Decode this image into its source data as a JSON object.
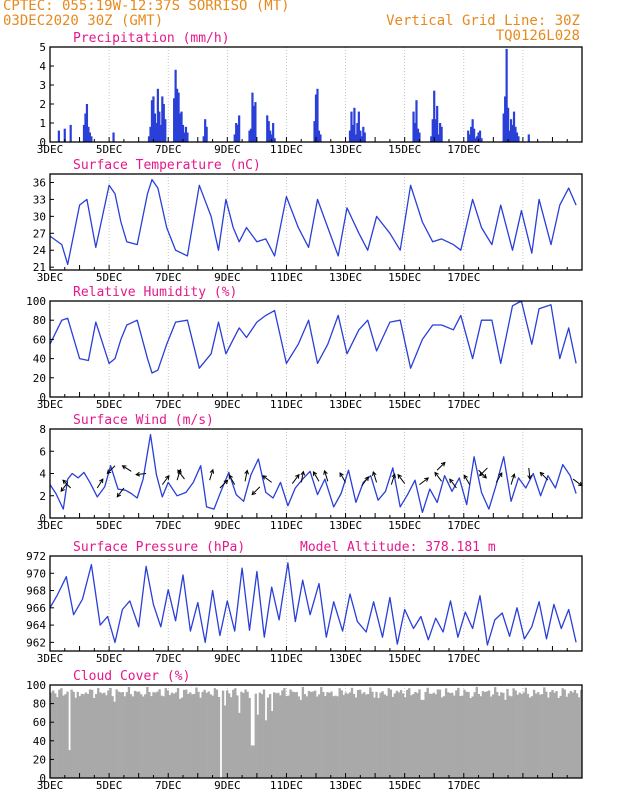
{
  "header": {
    "line1_left": "CPTEC:   055:19W-12:37S  SORRISO (MT)",
    "line2_left": "03DEC2020 30Z (GMT)",
    "line2_right": "Vertical Grid Line: 30Z",
    "line3_right": "TQ0126L028"
  },
  "colors": {
    "header": "#e68a1e",
    "title": "#e6188c",
    "series": "#2a3fd8",
    "bars": "#2a3fd8",
    "cloud": "#a9a9a9"
  },
  "x_ticks": [
    "3DEC",
    "5DEC",
    "7DEC",
    "9DEC",
    "11DEC",
    "13DEC",
    "15DEC",
    "17DEC"
  ],
  "chart_data": [
    {
      "type": "bar",
      "title": "Precipitation (mm/h)",
      "ylim": [
        0,
        5
      ],
      "yticks": [
        "0",
        "1",
        "2",
        "3",
        "4",
        "5"
      ],
      "x_days": [
        0.3,
        0.5,
        0.7,
        1.15,
        1.2,
        1.25,
        1.3,
        1.35,
        1.4,
        2.15,
        3.35,
        3.4,
        3.45,
        3.5,
        3.55,
        3.6,
        3.65,
        3.7,
        3.75,
        3.8,
        3.85,
        3.9,
        4.2,
        4.25,
        4.3,
        4.35,
        4.4,
        4.45,
        4.5,
        4.55,
        4.6,
        4.65,
        5.2,
        5.25,
        5.3,
        6.25,
        6.3,
        6.35,
        6.4,
        6.75,
        6.8,
        6.85,
        6.9,
        6.95,
        7.35,
        7.4,
        7.45,
        7.5,
        7.55,
        7.6,
        8.95,
        9.0,
        9.05,
        9.1,
        9.15,
        10.15,
        10.2,
        10.25,
        10.3,
        10.35,
        10.4,
        10.45,
        10.5,
        10.55,
        10.6,
        10.65,
        12.3,
        12.35,
        12.4,
        12.45,
        12.5,
        12.9,
        12.95,
        13.0,
        13.05,
        13.1,
        13.15,
        13.2,
        13.25,
        14.15,
        14.2,
        14.25,
        14.3,
        14.35,
        14.4,
        14.45,
        14.5,
        14.55,
        14.6,
        15.35,
        15.4,
        15.45,
        15.5,
        15.55,
        15.6,
        15.65,
        15.7,
        15.75,
        15.8,
        15.85,
        16.2
      ],
      "values": [
        0.6,
        0.7,
        0.9,
        0.9,
        1.5,
        2.0,
        0.8,
        0.5,
        0.3,
        0.5,
        0.3,
        0.8,
        2.2,
        2.4,
        1.5,
        1.0,
        2.8,
        1.6,
        0.9,
        2.4,
        2.0,
        1.2,
        2.3,
        3.8,
        2.8,
        2.6,
        1.5,
        1.6,
        0.9,
        0.5,
        0.8,
        0.5,
        0.3,
        1.2,
        0.8,
        0.4,
        1.0,
        0.9,
        1.4,
        0.6,
        0.7,
        2.6,
        1.9,
        2.1,
        1.4,
        1.1,
        0.6,
        0.4,
        1.0,
        0.2,
        1.1,
        2.5,
        2.8,
        0.6,
        0.4,
        0.6,
        1.6,
        0.9,
        1.8,
        0.4,
        1.0,
        1.6,
        0.6,
        0.3,
        0.8,
        0.5,
        1.6,
        1.0,
        2.2,
        0.7,
        0.5,
        0.3,
        1.2,
        2.7,
        1.2,
        1.9,
        0.4,
        1.0,
        0.8,
        0.6,
        0.4,
        0.8,
        1.2,
        0.7,
        0.2,
        0.3,
        0.5,
        0.6,
        0.2,
        1.5,
        2.4,
        4.9,
        1.8,
        0.6,
        1.2,
        0.9,
        1.6,
        0.8,
        0.5,
        0.3,
        0.4
      ]
    },
    {
      "type": "line",
      "title": "Surface Temperature (nC)",
      "ylim": [
        20.5,
        37.5
      ],
      "yticks": [
        "21",
        "24",
        "27",
        "30",
        "33",
        "36"
      ],
      "x_days": [
        0,
        0.4,
        0.6,
        1.0,
        1.25,
        1.55,
        2.0,
        2.2,
        2.4,
        2.6,
        2.95,
        3.3,
        3.45,
        3.65,
        3.95,
        4.25,
        4.65,
        5.05,
        5.45,
        5.7,
        5.95,
        6.2,
        6.4,
        6.65,
        7.0,
        7.3,
        7.6,
        8.0,
        8.4,
        8.75,
        9.05,
        9.4,
        9.75,
        10.05,
        10.45,
        10.75,
        11.05,
        11.5,
        11.85,
        12.2,
        12.6,
        12.95,
        13.25,
        13.65,
        13.9,
        14.3,
        14.6,
        14.95,
        15.25,
        15.65,
        15.95,
        16.3,
        16.55,
        16.95,
        17.25,
        17.55,
        17.8
      ],
      "values": [
        26.5,
        25,
        21.5,
        32,
        33,
        24.5,
        35.5,
        34,
        29,
        25.5,
        25,
        34,
        36.5,
        35,
        28,
        24,
        23,
        35.5,
        30,
        24,
        33,
        28,
        25.5,
        28,
        25.5,
        26,
        23,
        33.5,
        28,
        24.5,
        33,
        28,
        23,
        31.5,
        27,
        24,
        30,
        27,
        24,
        35.5,
        29,
        25.5,
        26,
        25,
        24,
        33,
        28,
        25,
        32,
        24,
        31,
        23.5,
        33,
        25,
        32,
        35,
        32
      ]
    },
    {
      "type": "line",
      "title": "Relative Humidity (%)",
      "ylim": [
        0,
        100
      ],
      "yticks": [
        "0",
        "20",
        "40",
        "60",
        "80",
        "100"
      ],
      "x_days": [
        0,
        0.4,
        0.6,
        1.0,
        1.3,
        1.55,
        2.0,
        2.2,
        2.4,
        2.6,
        2.95,
        3.3,
        3.45,
        3.65,
        3.95,
        4.25,
        4.65,
        5.05,
        5.45,
        5.7,
        5.95,
        6.2,
        6.4,
        6.65,
        7.0,
        7.3,
        7.6,
        8.0,
        8.4,
        8.75,
        9.05,
        9.4,
        9.75,
        10.05,
        10.45,
        10.75,
        11.05,
        11.5,
        11.85,
        12.2,
        12.6,
        12.95,
        13.25,
        13.65,
        13.9,
        14.3,
        14.6,
        14.95,
        15.25,
        15.65,
        15.95,
        16.3,
        16.55,
        16.95,
        17.25,
        17.55,
        17.8
      ],
      "values": [
        55,
        80,
        82,
        40,
        38,
        78,
        35,
        40,
        60,
        75,
        80,
        40,
        25,
        28,
        55,
        78,
        80,
        30,
        45,
        78,
        45,
        60,
        72,
        62,
        78,
        85,
        90,
        35,
        55,
        80,
        35,
        55,
        85,
        45,
        70,
        80,
        48,
        78,
        80,
        30,
        60,
        75,
        75,
        70,
        85,
        40,
        80,
        80,
        35,
        95,
        100,
        55,
        92,
        96,
        40,
        72,
        35
      ]
    },
    {
      "type": "line",
      "title": "Surface Wind (m/s)",
      "ylim": [
        0,
        8
      ],
      "yticks": [
        "0",
        "2",
        "4",
        "6",
        "8"
      ],
      "x_days": [
        0,
        0.2,
        0.45,
        0.6,
        0.75,
        0.95,
        1.15,
        1.35,
        1.6,
        1.85,
        2.05,
        2.3,
        2.55,
        2.75,
        2.95,
        3.15,
        3.4,
        3.6,
        3.8,
        4.0,
        4.3,
        4.6,
        4.85,
        5.1,
        5.3,
        5.55,
        5.8,
        6.05,
        6.3,
        6.55,
        6.8,
        7.05,
        7.3,
        7.55,
        7.8,
        8.05,
        8.3,
        8.55,
        8.8,
        9.05,
        9.3,
        9.6,
        9.85,
        10.1,
        10.35,
        10.6,
        10.85,
        11.1,
        11.35,
        11.6,
        11.85,
        12.1,
        12.35,
        12.6,
        12.85,
        13.1,
        13.35,
        13.6,
        13.85,
        14.1,
        14.35,
        14.6,
        14.85,
        15.1,
        15.35,
        15.6,
        15.85,
        16.1,
        16.35,
        16.6,
        16.85,
        17.1,
        17.35,
        17.6,
        17.8
      ],
      "values": [
        3,
        2.2,
        0.8,
        3.5,
        4,
        3.6,
        4.1,
        3.2,
        1.9,
        2.8,
        4.7,
        2.6,
        2.5,
        2.2,
        1.8,
        3.5,
        7.5,
        3.9,
        1.9,
        3.2,
        2,
        2.3,
        3.2,
        4.7,
        1,
        0.8,
        2.5,
        4.1,
        2.1,
        1.5,
        3.9,
        5.3,
        2.3,
        1.8,
        3.2,
        1.1,
        2.7,
        3.5,
        4.2,
        2.1,
        3.5,
        1,
        2.2,
        4.3,
        1.4,
        3.2,
        3.8,
        1.6,
        2.4,
        4.5,
        1,
        2.1,
        3.4,
        0.5,
        2.6,
        1.4,
        3.8,
        2.4,
        3.6,
        1.2,
        5.5,
        2.3,
        0.8,
        3,
        5.5,
        1.5,
        3.6,
        2.7,
        4,
        2,
        3.8,
        2.7,
        4.8,
        3.8,
        2.2
      ],
      "arrows": [
        {
          "x": 0.6,
          "y": 3.2,
          "dx": -0.6,
          "dy": -0.8
        },
        {
          "x": 0.7,
          "y": 2.7,
          "dx": -0.7,
          "dy": 0.7
        },
        {
          "x": 1.6,
          "y": 2.7,
          "dx": 0.5,
          "dy": 0.8
        },
        {
          "x": 2.2,
          "y": 4.7,
          "dx": -0.7,
          "dy": -0.7
        },
        {
          "x": 2.75,
          "y": 4.2,
          "dx": -0.8,
          "dy": 0.5
        },
        {
          "x": 2.5,
          "y": 2.7,
          "dx": -0.6,
          "dy": -0.8
        },
        {
          "x": 3.25,
          "y": 4.0,
          "dx": -0.9,
          "dy": -0.1
        },
        {
          "x": 3.8,
          "y": 3.0,
          "dx": 0.6,
          "dy": 0.8
        },
        {
          "x": 4.3,
          "y": 3.4,
          "dx": 0.3,
          "dy": 0.95
        },
        {
          "x": 4.55,
          "y": 3.5,
          "dx": -0.6,
          "dy": 0.8
        },
        {
          "x": 5.4,
          "y": 3.4,
          "dx": 0.3,
          "dy": 0.95
        },
        {
          "x": 5.75,
          "y": 2.7,
          "dx": 0.7,
          "dy": 0.7
        },
        {
          "x": 6.25,
          "y": 3.0,
          "dx": -0.5,
          "dy": 0.85
        },
        {
          "x": 6.6,
          "y": 3.3,
          "dx": 0.2,
          "dy": 0.98
        },
        {
          "x": 7.1,
          "y": 2.8,
          "dx": -0.7,
          "dy": -0.7
        },
        {
          "x": 7.5,
          "y": 3.2,
          "dx": -0.8,
          "dy": 0.6
        },
        {
          "x": 8.2,
          "y": 3.1,
          "dx": 0.6,
          "dy": 0.8
        },
        {
          "x": 8.5,
          "y": 3.2,
          "dx": 0.2,
          "dy": 0.98
        },
        {
          "x": 9.1,
          "y": 3.3,
          "dx": -0.5,
          "dy": 0.85
        },
        {
          "x": 9.4,
          "y": 3.3,
          "dx": -0.3,
          "dy": 0.95
        },
        {
          "x": 10.0,
          "y": 3.2,
          "dx": -0.5,
          "dy": 0.85
        },
        {
          "x": 10.55,
          "y": 2.9,
          "dx": 0.6,
          "dy": 0.8
        },
        {
          "x": 11.05,
          "y": 3.2,
          "dx": -0.3,
          "dy": 0.95
        },
        {
          "x": 11.55,
          "y": 3.0,
          "dx": 0.3,
          "dy": 0.95
        },
        {
          "x": 12.0,
          "y": 3.1,
          "dx": -0.6,
          "dy": 0.8
        },
        {
          "x": 12.5,
          "y": 3.0,
          "dx": 0.8,
          "dy": 0.6
        },
        {
          "x": 13.1,
          "y": 4.3,
          "dx": 0.7,
          "dy": 0.7
        },
        {
          "x": 13.25,
          "y": 3.3,
          "dx": -0.6,
          "dy": 0.8
        },
        {
          "x": 13.75,
          "y": 2.7,
          "dx": -0.6,
          "dy": 0.8
        },
        {
          "x": 14.2,
          "y": 3.0,
          "dx": -0.5,
          "dy": 0.85
        },
        {
          "x": 14.5,
          "y": 4.3,
          "dx": 0.7,
          "dy": -0.7
        },
        {
          "x": 14.8,
          "y": 4.5,
          "dx": -0.7,
          "dy": -0.7
        },
        {
          "x": 15.1,
          "y": 3.2,
          "dx": 0.5,
          "dy": 0.85
        },
        {
          "x": 15.6,
          "y": 3.0,
          "dx": 0.3,
          "dy": 0.95
        },
        {
          "x": 16.2,
          "y": 4.5,
          "dx": 0.1,
          "dy": -0.99
        },
        {
          "x": 16.85,
          "y": 3.4,
          "dx": -0.7,
          "dy": 0.7
        },
        {
          "x": 17.7,
          "y": 3.5,
          "dx": 0.8,
          "dy": -0.6
        }
      ]
    },
    {
      "type": "line",
      "title": "Surface Pressure (hPa)",
      "annotation": "Model Altitude: 378.181 m",
      "ylim": [
        961,
        972
      ],
      "yticks": [
        "962",
        "964",
        "966",
        "968",
        "970",
        "972"
      ],
      "x_days": [
        0,
        0.25,
        0.55,
        0.8,
        1.1,
        1.4,
        1.7,
        1.95,
        2.2,
        2.45,
        2.7,
        3.0,
        3.25,
        3.5,
        3.75,
        4.0,
        4.25,
        4.5,
        4.75,
        5.0,
        5.25,
        5.5,
        5.75,
        6.0,
        6.25,
        6.5,
        6.75,
        7.0,
        7.25,
        7.5,
        7.75,
        8.05,
        8.3,
        8.55,
        8.8,
        9.1,
        9.35,
        9.6,
        9.9,
        10.15,
        10.4,
        10.7,
        10.95,
        11.25,
        11.5,
        11.75,
        12.0,
        12.3,
        12.55,
        12.8,
        13.05,
        13.3,
        13.55,
        13.8,
        14.05,
        14.3,
        14.55,
        14.8,
        15.05,
        15.3,
        15.55,
        15.8,
        16.05,
        16.3,
        16.55,
        16.8,
        17.05,
        17.3,
        17.55,
        17.8
      ],
      "values": [
        966,
        967.5,
        969.6,
        965.2,
        967,
        971,
        964,
        965,
        962,
        965.8,
        966.8,
        963.8,
        970.8,
        966.4,
        963.8,
        968.1,
        964.5,
        969.8,
        963.3,
        966.6,
        962,
        968,
        962.8,
        966.8,
        963.3,
        970.6,
        963.4,
        970.2,
        962.6,
        968.4,
        964.6,
        971.2,
        964.4,
        969.2,
        965.2,
        968.8,
        962.6,
        966.7,
        963.3,
        967.6,
        964.4,
        963.2,
        966.7,
        962.6,
        967.2,
        961.8,
        965.8,
        963.6,
        965,
        962.3,
        964.8,
        963.2,
        966.8,
        962.6,
        965.5,
        963.6,
        967.4,
        961.7,
        964.6,
        965.4,
        962.7,
        966,
        962.4,
        963.8,
        966.7,
        962.4,
        966.4,
        963.6,
        965.8,
        962
      ]
    },
    {
      "type": "bar",
      "title": "Cloud Cover (%)",
      "ylim": [
        0,
        100
      ],
      "yticks": [
        "0",
        "20",
        "40",
        "60",
        "80",
        "100"
      ],
      "base_value": 92,
      "dips": [
        {
          "x": 0.65,
          "v": 30
        },
        {
          "x": 1.0,
          "v": 88
        },
        {
          "x": 1.5,
          "v": 86
        },
        {
          "x": 2.2,
          "v": 82
        },
        {
          "x": 3.1,
          "v": 90
        },
        {
          "x": 4.4,
          "v": 85
        },
        {
          "x": 5.8,
          "v": 0
        },
        {
          "x": 5.9,
          "v": 78
        },
        {
          "x": 6.4,
          "v": 70
        },
        {
          "x": 6.85,
          "v": 35
        },
        {
          "x": 7.0,
          "v": 68
        },
        {
          "x": 7.3,
          "v": 62
        },
        {
          "x": 7.5,
          "v": 72
        },
        {
          "x": 8.5,
          "v": 84
        },
        {
          "x": 9.6,
          "v": 88
        },
        {
          "x": 11.1,
          "v": 86
        },
        {
          "x": 12.6,
          "v": 84
        },
        {
          "x": 13.3,
          "v": 88
        },
        {
          "x": 14.2,
          "v": 86
        },
        {
          "x": 15.4,
          "v": 84
        },
        {
          "x": 16.3,
          "v": 88
        },
        {
          "x": 17.2,
          "v": 86
        }
      ]
    }
  ]
}
